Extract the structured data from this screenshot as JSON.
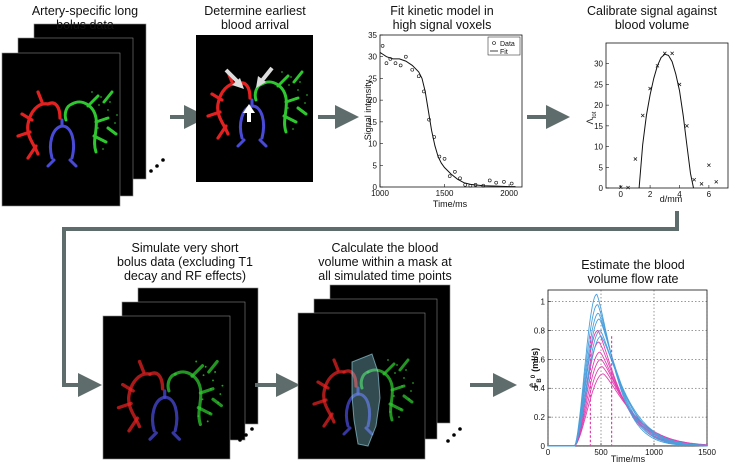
{
  "steps": {
    "s1": "Artery-specific long\nbolus data",
    "s2": "Determine earliest\nblood arrival",
    "s3": "Fit kinetic model in\nhigh signal voxels",
    "s4": "Calibrate signal against\nblood volume",
    "s5": "Simulate very short\nbolus data (excluding T1\ndecay and RF effects)",
    "s6": "Calculate the blood\nvolume within a mask at\nall simulated time points",
    "s7": "Estimate the blood\nvolume flow rate"
  },
  "colors": {
    "arrow": "#5e6d6b",
    "panel_bg": "#000000",
    "red": "#e32121",
    "green": "#2fc72f",
    "blue": "#4a4ad8",
    "pink": "#e040b0",
    "lightblue": "#4a9fdc",
    "mask": "#8fd8e8"
  },
  "chart_kinetic": {
    "type": "scatter",
    "xlabel": "Time/ms",
    "ylabel": "Signal intensity",
    "xlim": [
      1000,
      2100
    ],
    "ylim": [
      0,
      35
    ],
    "xticks": [
      "1000",
      "1500",
      "2000"
    ],
    "yticks": [
      "0",
      "5",
      "10",
      "15",
      "20",
      "25",
      "30",
      "35"
    ],
    "legend": [
      "Data",
      "Fit"
    ],
    "data_x": [
      1020,
      1050,
      1080,
      1120,
      1160,
      1200,
      1250,
      1300,
      1340,
      1380,
      1420,
      1460,
      1500,
      1540,
      1580,
      1620,
      1660,
      1700,
      1740,
      1800,
      1850,
      1900,
      1960,
      2020
    ],
    "data_y": [
      32.5,
      28.5,
      29.5,
      28.5,
      28.0,
      30.0,
      27.0,
      25.5,
      22.0,
      15.5,
      11.5,
      7.0,
      6.5,
      2.5,
      3.5,
      2.0,
      0.5,
      0.3,
      0.5,
      0.3,
      1.5,
      1.0,
      1.2,
      0.8
    ],
    "fit_x": [
      1000,
      1050,
      1100,
      1150,
      1200,
      1250,
      1300,
      1325,
      1350,
      1375,
      1400,
      1425,
      1450,
      1475,
      1500,
      1550,
      1600,
      1650,
      1700,
      1800,
      1900,
      2000,
      2050
    ],
    "fit_y": [
      31.0,
      30.0,
      29.5,
      29.5,
      29.0,
      28.0,
      26.5,
      25.0,
      22.0,
      17.5,
      13.0,
      9.5,
      7.0,
      5.5,
      4.5,
      3.0,
      1.8,
      1.0,
      0.6,
      0.3,
      0.2,
      0.1,
      0.1
    ]
  },
  "chart_calib": {
    "type": "scatter",
    "xlabel": "d/mm",
    "ylabel": "Λ",
    "ylabel_sub": "tot",
    "xlim": [
      -1,
      7.3
    ],
    "ylim": [
      0,
      35
    ],
    "xticks": [
      "0",
      "2",
      "4",
      "6"
    ],
    "yticks": [
      "0",
      "5",
      "10",
      "15",
      "20",
      "25",
      "30"
    ],
    "points_x": [
      0,
      0.5,
      1.0,
      1.5,
      2.0,
      2.5,
      3.0,
      3.5,
      4.0,
      4.5,
      5.0,
      5.5,
      6.0,
      6.5
    ],
    "points_y": [
      0.2,
      0.1,
      7.0,
      17.5,
      24.0,
      29.5,
      32.5,
      32.5,
      25.0,
      15.0,
      2.0,
      1.0,
      5.5,
      1.5
    ],
    "fit_x": [
      1.25,
      1.5,
      1.75,
      2.0,
      2.25,
      2.5,
      2.75,
      3.0,
      3.25,
      3.5,
      3.75,
      4.0,
      4.25,
      4.5,
      4.75,
      4.95
    ],
    "fit_y": [
      0,
      10.5,
      17.5,
      22.5,
      26.5,
      29.5,
      31.5,
      32.3,
      32.0,
      30.5,
      27.5,
      23.5,
      17.5,
      10.5,
      3.5,
      0
    ]
  },
  "chart_flow": {
    "type": "line",
    "xlabel": "Time/ms",
    "ylabel": "F̂",
    "ylabel_sub": "B",
    "ylabel_sup": "0",
    "ylabel_unit": "(ml/s)",
    "xlim": [
      0,
      1500
    ],
    "ylim": [
      0,
      1.08
    ],
    "xticks": [
      "0",
      "500",
      "1000",
      "1500"
    ],
    "yticks": [
      "0",
      "0.2",
      "0.4",
      "0.6",
      "0.8",
      "1"
    ],
    "vlines": [
      400,
      600
    ],
    "blue_peaks": [
      1.05,
      0.98,
      0.92,
      0.88,
      0.8,
      0.76
    ],
    "pink_peaks": [
      0.8,
      0.72,
      0.65,
      0.6,
      0.55,
      0.5
    ]
  }
}
